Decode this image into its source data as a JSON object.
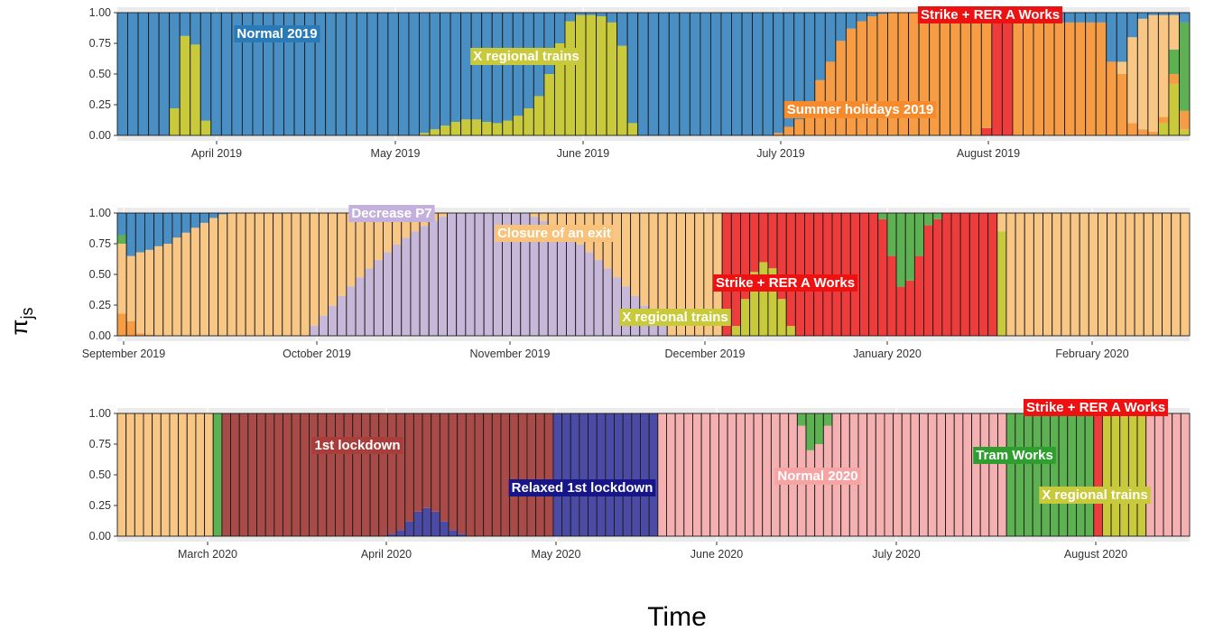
{
  "chart_data": {
    "type": "bar",
    "stacked": true,
    "xlabel": "Time",
    "ylabel": "π",
    "ylabel_sub": "js",
    "ylim": [
      0,
      1
    ],
    "y_ticks": [
      "0.00",
      "0.25",
      "0.50",
      "0.75",
      "1.00"
    ],
    "grid": true,
    "colors": {
      "normal2019": "#4a8fc4",
      "xregional": "#c8c93b",
      "summer": "#f59c45",
      "strike": "#ee3b3b",
      "closure": "#f8c685",
      "decrease": "#c7b8d9",
      "normal2020": "#f5b1b1",
      "lockdown": "#a84a48",
      "relaxed": "#4b4ba6",
      "tram": "#5eb152",
      "other_green": "#74bb61"
    },
    "panels": [
      {
        "x_ticks": [
          "April 2019",
          "May 2019",
          "June 2019",
          "July 2019",
          "August 2019"
        ],
        "segments": [
          {
            "from": 0,
            "to": 5,
            "comp": "normal2019"
          },
          {
            "from": 5,
            "to": 8,
            "comp": "normal2019",
            "yellow": [
              0.22,
              0.8,
              0.73
            ]
          },
          {
            "from": 8,
            "to": 40,
            "comp": "normal2019",
            "yellow_ramp_range": [
              28,
              40
            ],
            "yellow_ramp": [
              0.0,
              0.02,
              0.05,
              0.08,
              0.11,
              0.13,
              0.13,
              0.11,
              0.1,
              0.12,
              0.16,
              0.22
            ]
          },
          {
            "from": 40,
            "to": 48,
            "comp": "xregional_peak",
            "yellow": [
              0.32,
              0.5,
              0.75,
              0.93,
              0.98,
              0.98,
              0.97,
              0.92
            ]
          },
          {
            "from": 48,
            "to": 50,
            "comp": "normal2019",
            "yellow": [
              0.72,
              0.1
            ]
          },
          {
            "from": 50,
            "to": 70,
            "comp": "normal2019",
            "orange_ramp_range": [
              63,
              70
            ],
            "orange_ramp": [
              0.02,
              0.07,
              0.13,
              0.25,
              0.45,
              0.6,
              0.77
            ]
          },
          {
            "from": 70,
            "to": 83,
            "comp": "summer_full"
          },
          {
            "from": 83,
            "to": 86,
            "comp": "strike_full"
          },
          {
            "from": 86,
            "to": 95,
            "comp": "summer_full"
          },
          {
            "from": 95,
            "to": 103,
            "comp": "mixed_end"
          }
        ],
        "annotations": [
          {
            "label": "Normal 2019",
            "bg": "#2b7ab8",
            "fg": "#ffffff"
          },
          {
            "label": "X regional trains",
            "bg": "#c8c93b",
            "fg": "#ffffff"
          },
          {
            "label": "Summer holidays 2019",
            "bg": "#f58b2d",
            "fg": "#ffffff"
          },
          {
            "label": "Strike + RER A Works",
            "bg": "#ee1111",
            "fg": "#ffffff"
          }
        ]
      },
      {
        "x_ticks": [
          "September 2019",
          "October 2019",
          "November 2019",
          "December 2019",
          "January 2020",
          "February 2020"
        ],
        "annotations": [
          {
            "label": "Decrease P7",
            "bg": "#c4b0dc",
            "fg": "#ffffff"
          },
          {
            "label": "Closure of an exit",
            "bg": "#f9c27a",
            "fg": "#ffffff"
          },
          {
            "label": "Strike + RER A Works",
            "bg": "#ee1111",
            "fg": "#ffffff"
          },
          {
            "label": "X regional trains",
            "bg": "#c8c93b",
            "fg": "#ffffff"
          }
        ]
      },
      {
        "x_ticks": [
          "March 2020",
          "April 2020",
          "May 2020",
          "June 2020",
          "July 2020",
          "August 2020"
        ],
        "annotations": [
          {
            "label": "1st lockdown",
            "bg": "#a83e3b",
            "fg": "#ffffff"
          },
          {
            "label": "Relaxed 1st lockdown",
            "bg": "#16168a",
            "fg": "#ffffff"
          },
          {
            "label": "Normal 2020",
            "bg": "#f5a3a3",
            "fg": "#ffffff"
          },
          {
            "label": "Tram Works",
            "bg": "#2e9e2e",
            "fg": "#ffffff"
          },
          {
            "label": "Strike + RER A Works",
            "bg": "#ee1111",
            "fg": "#ffffff"
          },
          {
            "label": "X regional trains",
            "bg": "#c8c93b",
            "fg": "#ffffff"
          }
        ]
      }
    ]
  }
}
